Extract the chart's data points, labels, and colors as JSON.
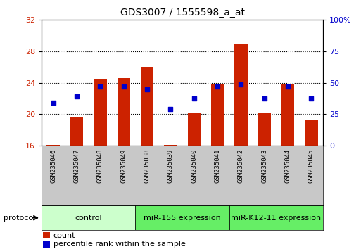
{
  "title": "GDS3007 / 1555598_a_at",
  "samples": [
    "GSM235046",
    "GSM235047",
    "GSM235048",
    "GSM235049",
    "GSM235038",
    "GSM235039",
    "GSM235040",
    "GSM235041",
    "GSM235042",
    "GSM235043",
    "GSM235044",
    "GSM235045"
  ],
  "bar_values": [
    16.1,
    19.7,
    24.5,
    24.6,
    26.0,
    16.1,
    20.2,
    23.8,
    29.0,
    20.1,
    23.9,
    19.3
  ],
  "percentile_values": [
    21.5,
    22.3,
    23.5,
    23.5,
    23.2,
    20.7,
    22.0,
    23.5,
    23.8,
    22.0,
    23.5,
    22.0
  ],
  "bar_bottom": 16,
  "ylim_left": [
    16,
    32
  ],
  "ylim_right": [
    0,
    100
  ],
  "yticks_left": [
    16,
    20,
    24,
    28,
    32
  ],
  "yticks_right": [
    0,
    25,
    50,
    75,
    100
  ],
  "ytick_labels_right": [
    "0",
    "25",
    "50",
    "75",
    "100%"
  ],
  "bar_color": "#cc2200",
  "percentile_color": "#0000cc",
  "group_control_color": "#ccffcc",
  "group_mir_color": "#66ee66",
  "sample_bg_color": "#c8c8c8",
  "protocol_label": "protocol",
  "legend_count_label": "count",
  "legend_percentile_label": "percentile rank within the sample",
  "bar_width": 0.55,
  "title_fontsize": 10,
  "tick_fontsize": 8,
  "sample_fontsize": 6.5,
  "group_fontsize": 8,
  "legend_fontsize": 8
}
